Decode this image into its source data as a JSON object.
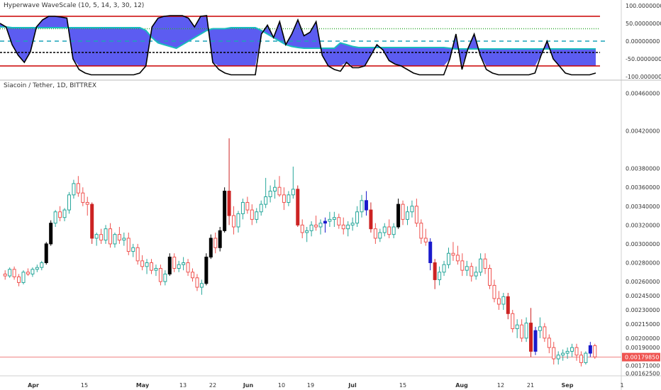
{
  "indicator": {
    "title": "Hyperwave WaveScale (10, 5, 14, 3, 30, 12)",
    "ticks": [
      "100.00000000",
      "50.00000000",
      "0.00000000",
      "-50.00000000",
      "-100.00000000"
    ],
    "tick_values": [
      100,
      50,
      0,
      -50,
      -100
    ],
    "ylim": [
      -100,
      100
    ],
    "levels": [
      {
        "name": "upper-red-line",
        "value": 70,
        "color": "#cc0000"
      },
      {
        "name": "upper-green-dotted",
        "value": 35,
        "color": "#33aa33"
      },
      {
        "name": "zero-dashed",
        "value": 0,
        "color": "#1aa3b8"
      },
      {
        "name": "lower-black-dashed",
        "value": -32,
        "color": "#000000"
      },
      {
        "name": "lower-red-line",
        "value": -70,
        "color": "#cc0000"
      }
    ]
  },
  "main": {
    "title": "Siacoin / Tether, 1D, BITTREX",
    "ticks": [
      "0.00460000",
      "0.00420000",
      "0.00380000",
      "0.00360000",
      "0.00340000",
      "0.00320000",
      "0.00300000",
      "0.00280000",
      "0.00260000",
      "0.00245000",
      "0.00230000",
      "0.00215000",
      "0.00200000",
      "0.00190000",
      "0.00179850",
      "0.00171000",
      "0.00162500"
    ],
    "last_price": "0.00179850",
    "last_price_value": 0.0017985,
    "ylim": [
      0.0016,
      0.0047
    ]
  },
  "x_axis": {
    "labels": [
      "Apr",
      "15",
      "May",
      "13",
      "22",
      "Jun",
      "10",
      "19",
      "Jul",
      "15",
      "Aug",
      "12",
      "21",
      "Sep",
      "1"
    ]
  },
  "colors": {
    "up": "#26a69a",
    "down": "#ef5350",
    "up_highlight": "#000000",
    "down_highlight": "#cc2222",
    "blue_bar": "#1a1acc",
    "cloud": "#3333ee",
    "osc": "#000000",
    "signal": "#1abcbc",
    "price_line": "#f08080",
    "price_label_bg": "#ef5350"
  },
  "chart_data": [
    {
      "type": "area",
      "title": "Hyperwave WaveScale (10, 5, 14, 3, 30, 12)",
      "ylim": [
        -100,
        100
      ],
      "series": [],
      "x": [],
      "oscillator": [
        50,
        40,
        -10,
        -40,
        -60,
        -30,
        40,
        60,
        70,
        70,
        68,
        65,
        -50,
        -80,
        -90,
        -95,
        -95,
        -95,
        -95,
        -95,
        -95,
        -95,
        -95,
        -90,
        -70,
        40,
        65,
        70,
        72,
        72,
        72,
        65,
        40,
        70,
        72,
        -60,
        -80,
        -90,
        -95,
        -95,
        -95,
        -95,
        -95,
        20,
        45,
        10,
        55,
        -10,
        20,
        60,
        15,
        25,
        55,
        -40,
        -70,
        -80,
        -85,
        -60,
        -75,
        -75,
        -70,
        -40,
        -10,
        -25,
        -55,
        -65,
        -70,
        -80,
        -90,
        -95,
        -95,
        -95,
        -95,
        -95,
        -50,
        20,
        -80,
        -20,
        20,
        -40,
        -80,
        -90,
        -95,
        -95,
        -95,
        -95,
        -95,
        -95,
        -90,
        -40,
        0,
        -50,
        -70,
        -90,
        -95,
        -95,
        -95,
        -95,
        -90
      ],
      "signal": [
        40,
        40,
        38,
        38,
        38,
        38,
        38,
        38,
        38,
        38,
        38,
        38,
        38,
        38,
        38,
        38,
        38,
        38,
        38,
        38,
        38,
        38,
        38,
        38,
        30,
        10,
        -5,
        -10,
        -15,
        -20,
        -10,
        0,
        10,
        20,
        30,
        35,
        35,
        35,
        38,
        38,
        38,
        38,
        38,
        30,
        20,
        10,
        0,
        -10,
        -15,
        -18,
        -20,
        -20,
        -20,
        -20,
        -20,
        -20,
        -5,
        -10,
        -15,
        -18,
        -18,
        -18,
        -18,
        -18,
        -18,
        -18,
        -18,
        -18,
        -18,
        -18,
        -18,
        -18,
        -18,
        -18,
        -20,
        -22,
        -22,
        -22,
        -22,
        -22,
        -22,
        -22,
        -22,
        -22,
        -22,
        -22,
        -22,
        -22,
        -22,
        -22,
        -22,
        -22,
        -22,
        -22,
        -22,
        -22,
        -22,
        -22,
        -22
      ]
    },
    {
      "type": "candlestick",
      "title": "Siacoin / Tether, 1D, BITTREX",
      "ylim": [
        0.0016,
        0.0047
      ],
      "candles": [
        [
          0.00268,
          0.00272,
          0.00262,
          0.00266
        ],
        [
          0.00266,
          0.00275,
          0.00264,
          0.00273
        ],
        [
          0.00273,
          0.00276,
          0.00262,
          0.00265
        ],
        [
          0.00265,
          0.00268,
          0.00255,
          0.00259
        ],
        [
          0.00259,
          0.00272,
          0.00257,
          0.0027
        ],
        [
          0.0027,
          0.00274,
          0.00266,
          0.00268
        ],
        [
          0.00268,
          0.00275,
          0.00265,
          0.00273
        ],
        [
          0.00273,
          0.00278,
          0.0027,
          0.00275
        ],
        [
          0.00275,
          0.00282,
          0.00272,
          0.0028
        ],
        [
          0.0028,
          0.00302,
          0.00278,
          0.003
        ],
        [
          0.003,
          0.00325,
          0.00298,
          0.00322
        ],
        [
          0.00322,
          0.00336,
          0.00318,
          0.00334
        ],
        [
          0.00334,
          0.0034,
          0.00324,
          0.00328
        ],
        [
          0.00328,
          0.00338,
          0.00324,
          0.00336
        ],
        [
          0.00336,
          0.00355,
          0.00332,
          0.00352
        ],
        [
          0.00352,
          0.00368,
          0.00348,
          0.00364
        ],
        [
          0.00364,
          0.00372,
          0.0035,
          0.00354
        ],
        [
          0.00354,
          0.0036,
          0.0034,
          0.00344
        ],
        [
          0.00344,
          0.0035,
          0.0033,
          0.00342
        ],
        [
          0.00342,
          0.00344,
          0.003,
          0.00306
        ],
        [
          0.00306,
          0.00312,
          0.00298,
          0.0031
        ],
        [
          0.0031,
          0.00316,
          0.003,
          0.00304
        ],
        [
          0.00304,
          0.0032,
          0.003,
          0.00316
        ],
        [
          0.00316,
          0.00322,
          0.00296,
          0.003
        ],
        [
          0.003,
          0.00312,
          0.00296,
          0.0031
        ],
        [
          0.0031,
          0.00318,
          0.003,
          0.00304
        ],
        [
          0.00304,
          0.00312,
          0.00298,
          0.00306
        ],
        [
          0.00306,
          0.00312,
          0.00288,
          0.00292
        ],
        [
          0.00292,
          0.003,
          0.00286,
          0.00296
        ],
        [
          0.00296,
          0.003,
          0.00278,
          0.00282
        ],
        [
          0.00282,
          0.00288,
          0.00272,
          0.00276
        ],
        [
          0.00276,
          0.00284,
          0.00268,
          0.0028
        ],
        [
          0.0028,
          0.00284,
          0.00268,
          0.00272
        ],
        [
          0.00272,
          0.00278,
          0.00266,
          0.00274
        ],
        [
          0.00274,
          0.00278,
          0.00256,
          0.0026
        ],
        [
          0.0026,
          0.00272,
          0.00256,
          0.00268
        ],
        [
          0.00268,
          0.0029,
          0.00266,
          0.00286
        ],
        [
          0.00286,
          0.0029,
          0.0027,
          0.00274
        ],
        [
          0.00274,
          0.00282,
          0.0027,
          0.00278
        ],
        [
          0.00278,
          0.00286,
          0.00272,
          0.0028
        ],
        [
          0.0028,
          0.00284,
          0.00266,
          0.0027
        ],
        [
          0.0027,
          0.00274,
          0.0026,
          0.00264
        ],
        [
          0.00264,
          0.00268,
          0.0025,
          0.00254
        ],
        [
          0.00254,
          0.00262,
          0.00246,
          0.00258
        ],
        [
          0.00258,
          0.0029,
          0.00256,
          0.00286
        ],
        [
          0.00286,
          0.0031,
          0.00284,
          0.00306
        ],
        [
          0.00306,
          0.00312,
          0.0029,
          0.00296
        ],
        [
          0.00296,
          0.00318,
          0.00292,
          0.00314
        ],
        [
          0.00314,
          0.0036,
          0.00312,
          0.00356
        ],
        [
          0.00356,
          0.00412,
          0.0032,
          0.0033
        ],
        [
          0.0033,
          0.0034,
          0.0031,
          0.00318
        ],
        [
          0.00318,
          0.00335,
          0.00312,
          0.00332
        ],
        [
          0.00332,
          0.00348,
          0.00326,
          0.00344
        ],
        [
          0.00344,
          0.0035,
          0.00332,
          0.00336
        ],
        [
          0.00336,
          0.00342,
          0.0032,
          0.00326
        ],
        [
          0.00326,
          0.00338,
          0.00322,
          0.00334
        ],
        [
          0.00334,
          0.00346,
          0.0033,
          0.00342
        ],
        [
          0.00342,
          0.0037,
          0.00338,
          0.0035
        ],
        [
          0.0035,
          0.00362,
          0.00344,
          0.00356
        ],
        [
          0.00356,
          0.00368,
          0.00348,
          0.0036
        ],
        [
          0.0036,
          0.00372,
          0.0035,
          0.00352
        ],
        [
          0.00352,
          0.0036,
          0.00336,
          0.00344
        ],
        [
          0.00344,
          0.00356,
          0.0034,
          0.00352
        ],
        [
          0.00352,
          0.00382,
          0.00348,
          0.00358
        ],
        [
          0.00358,
          0.00362,
          0.00318,
          0.0032
        ],
        [
          0.0032,
          0.00326,
          0.00306,
          0.00312
        ],
        [
          0.00312,
          0.00318,
          0.00302,
          0.00314
        ],
        [
          0.00314,
          0.00324,
          0.00308,
          0.0032
        ],
        [
          0.0032,
          0.0033,
          0.00314,
          0.00318
        ],
        [
          0.00318,
          0.00326,
          0.0031,
          0.00322
        ],
        [
          0.00322,
          0.00328,
          0.00312,
          0.00324
        ],
        [
          0.00324,
          0.00334,
          0.00318,
          0.00326
        ],
        [
          0.00326,
          0.00334,
          0.00318,
          0.00328
        ],
        [
          0.00328,
          0.00332,
          0.00316,
          0.0032
        ],
        [
          0.0032,
          0.00328,
          0.0031,
          0.00316
        ],
        [
          0.00316,
          0.00324,
          0.00308,
          0.0032
        ],
        [
          0.0032,
          0.00328,
          0.00314,
          0.00322
        ],
        [
          0.00322,
          0.0034,
          0.00318,
          0.00334
        ],
        [
          0.00334,
          0.00352,
          0.00328,
          0.00346
        ],
        [
          0.00346,
          0.00356,
          0.0033,
          0.00336
        ],
        [
          0.00336,
          0.00344,
          0.00312,
          0.00316
        ],
        [
          0.00316,
          0.00322,
          0.003,
          0.00306
        ],
        [
          0.00306,
          0.00316,
          0.00302,
          0.00312
        ],
        [
          0.00312,
          0.00322,
          0.00308,
          0.00318
        ],
        [
          0.00318,
          0.00326,
          0.00306,
          0.0031
        ],
        [
          0.0031,
          0.00322,
          0.00306,
          0.00318
        ],
        [
          0.00318,
          0.00348,
          0.00316,
          0.00342
        ],
        [
          0.00342,
          0.00346,
          0.0032,
          0.00326
        ],
        [
          0.00326,
          0.0034,
          0.0032,
          0.00334
        ],
        [
          0.00334,
          0.00346,
          0.00328,
          0.0034
        ],
        [
          0.0034,
          0.00348,
          0.00318,
          0.00322
        ],
        [
          0.00322,
          0.00326,
          0.003,
          0.00306
        ],
        [
          0.00306,
          0.00316,
          0.00298,
          0.00302
        ],
        [
          0.00302,
          0.00306,
          0.00272,
          0.0028
        ],
        [
          0.0028,
          0.00284,
          0.00252,
          0.00262
        ],
        [
          0.00262,
          0.00276,
          0.00256,
          0.0027
        ],
        [
          0.0027,
          0.00282,
          0.00266,
          0.00278
        ],
        [
          0.00278,
          0.00296,
          0.00274,
          0.0029
        ],
        [
          0.0029,
          0.00302,
          0.00282,
          0.00288
        ],
        [
          0.00288,
          0.00298,
          0.00278,
          0.00282
        ],
        [
          0.00282,
          0.0029,
          0.00266,
          0.00272
        ],
        [
          0.00272,
          0.00282,
          0.00266,
          0.00276
        ],
        [
          0.00276,
          0.0028,
          0.0026,
          0.00266
        ],
        [
          0.00266,
          0.00276,
          0.00262,
          0.0027
        ],
        [
          0.0027,
          0.0029,
          0.00266,
          0.00284
        ],
        [
          0.00284,
          0.0029,
          0.00268,
          0.00274
        ],
        [
          0.00274,
          0.00278,
          0.00252,
          0.00256
        ],
        [
          0.00256,
          0.00262,
          0.00238,
          0.00242
        ],
        [
          0.00242,
          0.0025,
          0.0023,
          0.00236
        ],
        [
          0.00236,
          0.00248,
          0.0023,
          0.00244
        ],
        [
          0.00244,
          0.00248,
          0.0022,
          0.00226
        ],
        [
          0.00226,
          0.0023,
          0.00206,
          0.0021
        ],
        [
          0.0021,
          0.0022,
          0.002,
          0.00214
        ],
        [
          0.00214,
          0.0022,
          0.00196,
          0.002
        ],
        [
          0.002,
          0.00222,
          0.00196,
          0.00216
        ],
        [
          0.00216,
          0.00232,
          0.0018,
          0.00186
        ],
        [
          0.00186,
          0.00212,
          0.00182,
          0.00208
        ],
        [
          0.00208,
          0.00222,
          0.002,
          0.00212
        ],
        [
          0.00212,
          0.00216,
          0.00196,
          0.002
        ],
        [
          0.002,
          0.00204,
          0.00184,
          0.0019
        ],
        [
          0.0019,
          0.00196,
          0.00172,
          0.00178
        ],
        [
          0.00178,
          0.00186,
          0.00172,
          0.00182
        ],
        [
          0.00182,
          0.00188,
          0.00176,
          0.00184
        ],
        [
          0.00184,
          0.0019,
          0.00178,
          0.00186
        ],
        [
          0.00186,
          0.00194,
          0.0018,
          0.0019
        ],
        [
          0.0019,
          0.00194,
          0.00176,
          0.00182
        ],
        [
          0.00182,
          0.00186,
          0.0017,
          0.00174
        ],
        [
          0.00174,
          0.00186,
          0.00172,
          0.00184
        ],
        [
          0.00184,
          0.00196,
          0.0018,
          0.00192
        ],
        [
          0.00192,
          0.00194,
          0.00178,
          0.0018
        ]
      ]
    }
  ]
}
